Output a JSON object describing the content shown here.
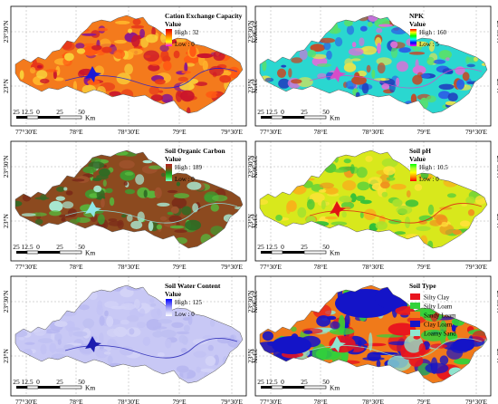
{
  "ticks": {
    "longitudes": [
      "77°30'E",
      "78°E",
      "78°30'E",
      "79°E",
      "79°30'E"
    ],
    "latitudes": [
      "23°30'N",
      "23°N"
    ]
  },
  "scale_bar": {
    "labels": [
      "25",
      "12.5",
      "0",
      "25",
      "50"
    ],
    "unit": "Km"
  },
  "panels": [
    {
      "title": "Cation Exchange Capacity",
      "legend_type": "gradient",
      "value_label": "Value",
      "high": "High : 32",
      "low": "Low : 0",
      "ramp": [
        "#ff00ff",
        "#ffff00",
        "#ffa500",
        "#ff4500",
        "#cc0000"
      ],
      "base_color": "#f47a1c",
      "patch_colors": [
        "#e7371a",
        "#ffb52b",
        "#f9d23a",
        "#ff5a13",
        "#c9132c",
        "#8c1a8c"
      ],
      "mark_color": "#1a1ad6"
    },
    {
      "title": "NPK",
      "legend_type": "gradient",
      "value_label": "Value",
      "high": "High : 160",
      "low": "Low : 5",
      "ramp": [
        "#ff00ff",
        "#0000ff",
        "#00ffff",
        "#00ff00",
        "#ffff00",
        "#ff0000"
      ],
      "base_color": "#2ad7d0",
      "patch_colors": [
        "#2b62e6",
        "#59e06a",
        "#1f3fbf",
        "#e9e34a",
        "#c24b2a",
        "#d872d8"
      ],
      "mark_color": "#d64cc8"
    },
    {
      "title": "Soil Organic Carbon",
      "legend_type": "gradient",
      "value_label": "Value",
      "high": "High : 189",
      "low": "Low : 0",
      "ramp": [
        "#7fffd4",
        "#32cd32",
        "#228b22",
        "#8b4513",
        "#b22222"
      ],
      "base_color": "#8c4a1f",
      "patch_colors": [
        "#3f9b2f",
        "#7a2a18",
        "#56b83c",
        "#a0522d",
        "#2e6b24",
        "#a8e6cf"
      ],
      "mark_color": "#8fe7e7"
    },
    {
      "title": "Soil pH",
      "legend_type": "gradient",
      "value_label": "Value",
      "high": "High : 10.5",
      "low": "Low : 0",
      "ramp": [
        "#ff0000",
        "#ff8c00",
        "#ffff00",
        "#adff2f",
        "#00ff00"
      ],
      "base_color": "#d8e81c",
      "patch_colors": [
        "#f7b21b",
        "#a6e22e",
        "#5fd13a",
        "#f08f1f",
        "#ffe23a",
        "#2fbf3a"
      ],
      "mark_color": "#e01414"
    },
    {
      "title": "Soil Water Content",
      "legend_type": "gradient",
      "value_label": "Value",
      "high": "High : 125",
      "low": "Low : 0",
      "ramp": [
        "#ffffff",
        "#9f9ff5",
        "#0000ff"
      ],
      "base_color": "#c8c8f5",
      "patch_colors": [
        "#b6b6f0",
        "#d3d3f7",
        "#bfc0f2",
        "#c2c2f4"
      ],
      "mark_color": "#1c1cb0"
    },
    {
      "title": "Soil Type",
      "legend_type": "categorical",
      "classes": [
        {
          "label": "Silty Clay",
          "color": "#e8141e"
        },
        {
          "label": "Silty Loam",
          "color": "#32d23a"
        },
        {
          "label": "Sandy Loam",
          "color": "#f07a1a"
        },
        {
          "label": "Clay Loam",
          "color": "#1414c8"
        },
        {
          "label": "Loamy Sand",
          "color": "#8fe6cf"
        }
      ],
      "base_color": "#f07a1a",
      "patch_colors": [
        "#1414c8",
        "#1414c8",
        "#1414c8",
        "#32d23a",
        "#8fe6cf",
        "#e8141e"
      ],
      "mark_color": "#8fe6cf"
    }
  ]
}
